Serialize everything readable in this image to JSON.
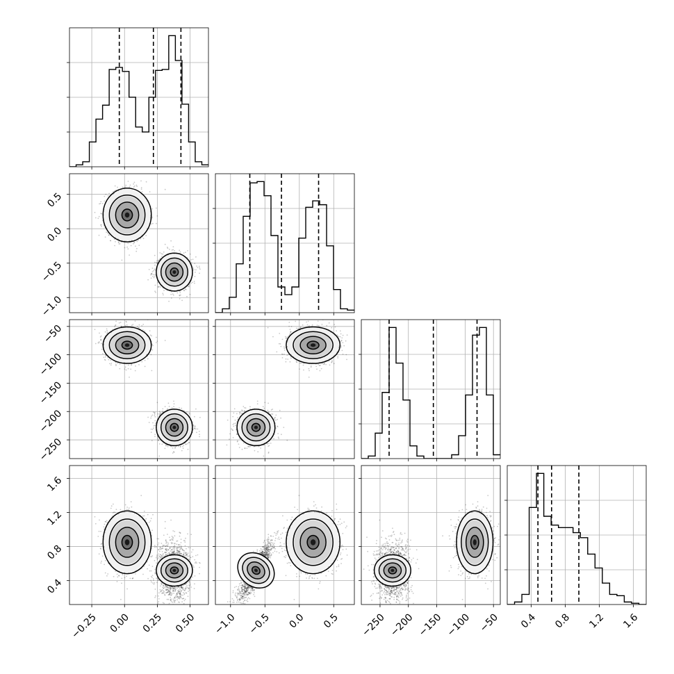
{
  "chart_data": {
    "type": "corner",
    "title": "",
    "parameters": [
      {
        "label": "",
        "range": [
          -0.42,
          0.64
        ],
        "ticks": [
          -0.25,
          0.0,
          0.25,
          0.5
        ],
        "tick_labels": [
          "−0.25",
          "0.00",
          "0.25",
          "0.50"
        ],
        "quantiles": [
          -0.04,
          0.22,
          0.43
        ],
        "histogram": [
          0.0,
          0.02,
          0.05,
          0.25,
          0.48,
          0.62,
          0.98,
          1.0,
          0.96,
          0.7,
          0.4,
          0.35,
          0.7,
          0.97,
          0.98,
          1.32,
          1.07,
          0.63,
          0.25,
          0.05,
          0.02
        ]
      },
      {
        "label": "",
        "range": [
          -1.22,
          0.8
        ],
        "ticks": [
          -1.0,
          -0.5,
          0.0,
          0.5
        ],
        "tick_labels": [
          "−1.0",
          "−0.5",
          "0.0",
          "0.5"
        ],
        "quantiles": [
          -0.72,
          -0.26,
          0.28
        ],
        "histogram": [
          0.0,
          0.03,
          0.12,
          0.38,
          0.75,
          1.01,
          1.02,
          0.91,
          0.6,
          0.2,
          0.14,
          0.2,
          0.58,
          0.82,
          0.87,
          0.84,
          0.52,
          0.18,
          0.03,
          0.02
        ]
      },
      {
        "label": "",
        "range": [
          -283,
          -38
        ],
        "ticks": [
          -250,
          -200,
          -150,
          -100,
          -50
        ],
        "tick_labels": [
          "−250",
          "−200",
          "−150",
          "−100",
          "−50"
        ],
        "quantiles": [
          -234,
          -156,
          -79
        ],
        "histogram": [
          0.0,
          0.02,
          0.2,
          0.52,
          1.03,
          0.75,
          0.46,
          0.1,
          0.02,
          0.0,
          0.0,
          0.0,
          0.0,
          0.03,
          0.18,
          0.5,
          0.97,
          1.03,
          0.5,
          0.03
        ]
      },
      {
        "label": "",
        "range": [
          0.12,
          1.75
        ],
        "ticks": [
          0.4,
          0.8,
          1.2,
          1.6
        ],
        "tick_labels": [
          "0.4",
          "0.8",
          "1.2",
          "1.6"
        ],
        "quantiles": [
          0.48,
          0.64,
          0.96
        ],
        "histogram": [
          0.0,
          0.02,
          0.08,
          0.77,
          1.04,
          0.7,
          0.63,
          0.61,
          0.61,
          0.57,
          0.53,
          0.4,
          0.29,
          0.17,
          0.08,
          0.07,
          0.02,
          0.01,
          0.0
        ]
      }
    ],
    "modes": [
      {
        "weight": 0.5,
        "mean": [
          0.02,
          0.2,
          -83,
          0.85
        ],
        "sd": [
          0.08,
          0.17,
          14,
          0.16
        ]
      },
      {
        "weight": 0.5,
        "mean": [
          0.38,
          -0.63,
          -228,
          0.52
        ],
        "sd": [
          0.06,
          0.12,
          14,
          0.08
        ]
      }
    ],
    "mode2_correlation": {
      "params": [
        1,
        3
      ],
      "rho": 0.65,
      "scale": 0.22
    },
    "grid": true,
    "samples_per_mode": 1600
  }
}
